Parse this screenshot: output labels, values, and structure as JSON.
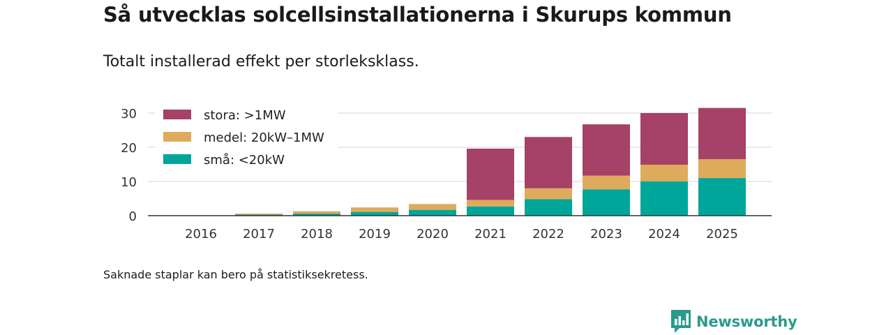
{
  "title": "Så utvecklas solcellsinstallationerna i Skurups kommun",
  "subtitle": "Totalt installerad effekt per storleksklass.",
  "footnote": "Saknade staplar kan bero på statistiksekretess.",
  "brand": {
    "name": "Newsworthy",
    "logo_icon": "newsworthy-logo-icon",
    "color": "#2b9a8c"
  },
  "chart_data": {
    "type": "bar",
    "stacked": true,
    "categories": [
      "2016",
      "2017",
      "2018",
      "2019",
      "2020",
      "2021",
      "2022",
      "2023",
      "2024",
      "2025"
    ],
    "series": [
      {
        "name": "små: <20kW",
        "color": "#00a69a",
        "values": [
          0.05,
          0.3,
          0.6,
          1.1,
          1.7,
          2.7,
          4.8,
          7.7,
          10.0,
          11.0
        ]
      },
      {
        "name": "medel: 20kW–1MW",
        "color": "#deab5c",
        "values": [
          0.05,
          0.3,
          0.7,
          1.3,
          1.7,
          1.9,
          3.2,
          4.0,
          4.9,
          5.5
        ]
      },
      {
        "name": "stora: >1MW",
        "color": "#a64168",
        "values": [
          0,
          0,
          0,
          0,
          0,
          15.0,
          15.0,
          15.0,
          15.1,
          15.0
        ]
      }
    ],
    "legend_order": [
      2,
      1,
      0
    ],
    "legend_position": "top-left",
    "yticks": [
      0,
      10,
      20,
      30
    ],
    "ylim": [
      0,
      32
    ],
    "xlabel": "",
    "ylabel": "",
    "grid": true
  }
}
